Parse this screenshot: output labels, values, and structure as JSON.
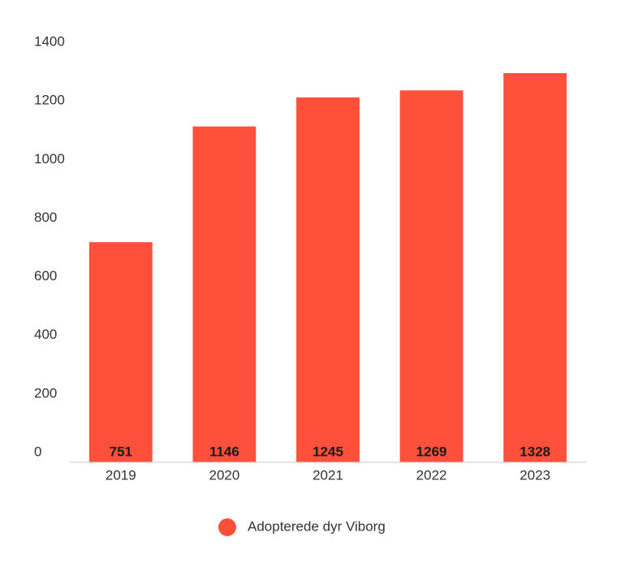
{
  "chart_data": {
    "type": "bar",
    "categories": [
      "2019",
      "2020",
      "2021",
      "2022",
      "2023"
    ],
    "series": [
      {
        "name": "Adopterede dyr Viborg",
        "color": "#ff503c",
        "values": [
          751,
          1146,
          1245,
          1269,
          1328
        ]
      }
    ],
    "ylim": [
      0,
      1400
    ],
    "yticks": [
      0,
      200,
      400,
      600,
      800,
      1000,
      1200,
      1400
    ],
    "data_labels": true,
    "legend": "bottom"
  }
}
